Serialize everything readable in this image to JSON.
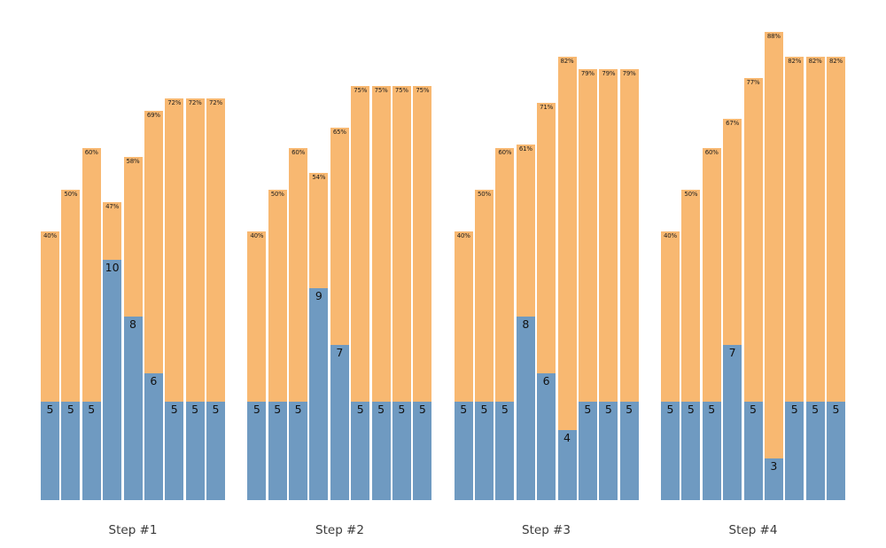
{
  "chart_data": {
    "type": "bar",
    "stacked": true,
    "title": "",
    "legend": null,
    "description": "Four groups of 9 stacked bars; blue bottom segment labeled with a count, orange top segment labeled with a percentage at the bar top",
    "colors": {
      "bottom_segment_blue": "#6f9ac1",
      "top_segment_orange": "#f8b871",
      "percent_label": "#1c1c1c",
      "value_label": "#111111",
      "group_label": "#3b3b3b",
      "background": "#ffffff"
    },
    "groups": [
      {
        "label": "Step #1",
        "bars": [
          {
            "value": 5,
            "percent": 40
          },
          {
            "value": 5,
            "percent": 50
          },
          {
            "value": 5,
            "percent": 60
          },
          {
            "value": 10,
            "percent": 47
          },
          {
            "value": 8,
            "percent": 58
          },
          {
            "value": 6,
            "percent": 69
          },
          {
            "value": 5,
            "percent": 72
          },
          {
            "value": 5,
            "percent": 72
          },
          {
            "value": 5,
            "percent": 72
          }
        ]
      },
      {
        "label": "Step #2",
        "bars": [
          {
            "value": 5,
            "percent": 40
          },
          {
            "value": 5,
            "percent": 50
          },
          {
            "value": 5,
            "percent": 60
          },
          {
            "value": 9,
            "percent": 54
          },
          {
            "value": 7,
            "percent": 65
          },
          {
            "value": 5,
            "percent": 75
          },
          {
            "value": 5,
            "percent": 75
          },
          {
            "value": 5,
            "percent": 75
          },
          {
            "value": 5,
            "percent": 75
          }
        ]
      },
      {
        "label": "Step #3",
        "bars": [
          {
            "value": 5,
            "percent": 40
          },
          {
            "value": 5,
            "percent": 50
          },
          {
            "value": 5,
            "percent": 60
          },
          {
            "value": 8,
            "percent": 61
          },
          {
            "value": 6,
            "percent": 71
          },
          {
            "value": 4,
            "percent": 82
          },
          {
            "value": 5,
            "percent": 79
          },
          {
            "value": 5,
            "percent": 79
          },
          {
            "value": 5,
            "percent": 79
          }
        ]
      },
      {
        "label": "Step #4",
        "bars": [
          {
            "value": 5,
            "percent": 40
          },
          {
            "value": 5,
            "percent": 50
          },
          {
            "value": 5,
            "percent": 60
          },
          {
            "value": 7,
            "percent": 67
          },
          {
            "value": 5,
            "percent": 77
          },
          {
            "value": 3,
            "percent": 88
          },
          {
            "value": 5,
            "percent": 82
          },
          {
            "value": 5,
            "percent": 82
          },
          {
            "value": 5,
            "percent": 82
          }
        ]
      }
    ]
  }
}
